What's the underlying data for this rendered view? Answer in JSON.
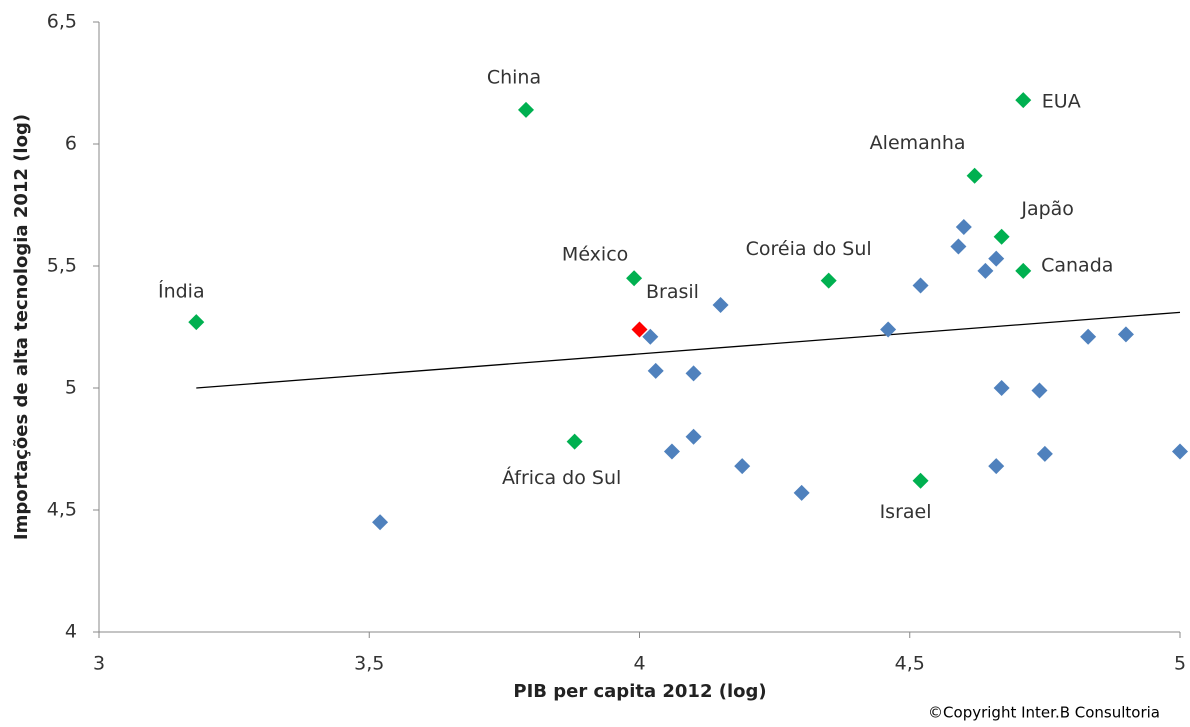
{
  "chart_data": {
    "type": "scatter",
    "xlabel": "PIB per capita 2012 (log)",
    "ylabel": "Importações de alta tecnologia 2012 (log)",
    "note": "©Copyright Inter.B Consultoria",
    "xlim": [
      3,
      5
    ],
    "ylim": [
      4,
      6.5
    ],
    "xticks": [
      3,
      {
        "value": 3.5,
        "label": "3,5"
      },
      4,
      {
        "value": 4.5,
        "label": "4,5"
      },
      5
    ],
    "yticks": [
      4,
      {
        "value": 4.5,
        "label": "4,5"
      },
      5,
      {
        "value": 5.5,
        "label": "5,5"
      },
      6,
      {
        "value": 6.5,
        "label": "6,5"
      }
    ],
    "grid": false,
    "series": [
      {
        "color": "#4f81bd",
        "x": [
          3.52,
          4.02,
          4.03,
          4.1,
          4.15,
          4.06,
          4.1,
          4.19,
          4.3,
          4.46,
          4.52,
          4.6,
          4.59,
          4.64,
          4.66,
          4.67,
          4.66,
          4.74,
          4.75,
          4.83,
          4.9,
          5.0
        ],
        "y": [
          4.45,
          5.21,
          5.07,
          5.06,
          5.34,
          4.74,
          4.8,
          4.68,
          4.57,
          5.24,
          5.42,
          5.66,
          5.58,
          5.48,
          5.53,
          5.0,
          4.68,
          4.99,
          4.73,
          5.21,
          5.22,
          4.74
        ]
      },
      {
        "color": "#00b050",
        "x": [
          3.18,
          3.79,
          3.99,
          3.88,
          4.35,
          4.52,
          4.62,
          4.71,
          4.67,
          4.71
        ],
        "y": [
          5.27,
          6.14,
          5.45,
          4.78,
          5.44,
          4.62,
          5.87,
          6.18,
          5.62,
          5.48
        ],
        "labels": [
          "Índia",
          "China",
          "México",
          "África do Sul",
          "Coréia do Sul",
          "Israel",
          "Alemanha",
          "EUA",
          "Japão",
          "Canada"
        ]
      },
      {
        "color": "#ff0000",
        "x": [
          4.0
        ],
        "y": [
          5.24
        ],
        "labels": [
          "Brasil"
        ]
      }
    ],
    "trendline": {
      "color": "#000000",
      "x": [
        3.18,
        5.0
      ],
      "y": [
        5.0,
        5.31
      ]
    }
  }
}
